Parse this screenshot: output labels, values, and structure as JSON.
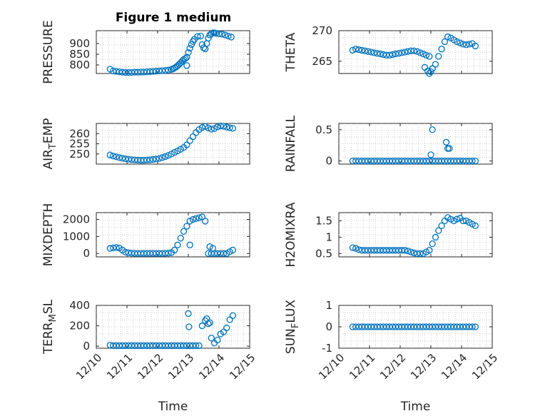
{
  "figure": {
    "title": "Figure 1 medium",
    "marker_color": "#0072bd",
    "x_tick_labels": [
      "12/10",
      "12/11",
      "12/12",
      "12/13",
      "12/14",
      "12/15"
    ],
    "x_label": "Time"
  },
  "chart_data": [
    {
      "type": "scatter",
      "ylabel": "PRESSURE",
      "ylim": [
        760,
        960
      ],
      "yticks": [
        800,
        850,
        900
      ],
      "ytick_labels": [
        "800",
        "850",
        "900"
      ],
      "xlim": [
        10,
        15
      ],
      "x_label": "",
      "marker": "circle",
      "x": [
        10.45,
        10.55,
        10.65,
        10.75,
        10.85,
        10.95,
        11.05,
        11.15,
        11.25,
        11.35,
        11.45,
        11.55,
        11.65,
        11.75,
        11.85,
        11.95,
        12.05,
        12.15,
        12.25,
        12.35,
        12.45,
        12.5,
        12.55,
        12.6,
        12.65,
        12.7,
        12.75,
        12.8,
        12.85,
        12.9,
        12.95,
        13.0,
        13.05,
        13.1,
        13.15,
        13.2,
        13.3,
        13.4,
        13.45,
        13.5,
        13.55,
        13.6,
        13.65,
        13.7,
        13.75,
        13.8,
        13.85,
        13.9,
        14.0,
        14.1,
        14.2,
        14.3,
        14.4,
        12.95
      ],
      "y": [
        780,
        772,
        770,
        768,
        766,
        765,
        765,
        765,
        766,
        766,
        767,
        767,
        768,
        769,
        770,
        771,
        772,
        773,
        774,
        776,
        779,
        782,
        786,
        790,
        796,
        803,
        810,
        818,
        825,
        830,
        836,
        858,
        878,
        895,
        910,
        920,
        933,
        935,
        895,
        880,
        875,
        900,
        925,
        940,
        945,
        950,
        950,
        948,
        946,
        944,
        940,
        935,
        930,
        797
      ]
    },
    {
      "type": "scatter",
      "ylabel": "THETA",
      "ylim": [
        263,
        270
      ],
      "yticks": [
        265,
        270
      ],
      "ytick_labels": [
        "265",
        "270"
      ],
      "xlim": [
        10,
        15
      ],
      "x_label": "",
      "marker": "circle",
      "x": [
        10.45,
        10.55,
        10.65,
        10.75,
        10.85,
        10.95,
        11.05,
        11.15,
        11.25,
        11.35,
        11.45,
        11.55,
        11.65,
        11.75,
        11.85,
        11.95,
        12.05,
        12.15,
        12.25,
        12.35,
        12.45,
        12.55,
        12.65,
        12.75,
        12.85,
        12.95,
        13.05,
        13.15,
        13.25,
        13.35,
        13.45,
        13.55,
        13.65,
        13.75,
        13.85,
        13.95,
        14.05,
        14.15,
        14.25,
        14.35,
        14.45,
        12.8,
        12.9,
        12.95,
        13.0,
        13.05
      ],
      "y": [
        266.8,
        267.0,
        266.9,
        266.8,
        266.7,
        266.6,
        266.5,
        266.4,
        266.3,
        266.2,
        266.1,
        266.0,
        266.0,
        266.1,
        266.2,
        266.3,
        266.4,
        266.5,
        266.6,
        266.7,
        266.7,
        266.6,
        266.4,
        266.2,
        266.0,
        265.8,
        263.8,
        264.5,
        265.8,
        267.0,
        268.2,
        269.0,
        268.8,
        268.5,
        268.2,
        268.0,
        267.8,
        267.7,
        267.8,
        267.9,
        267.5,
        264.0,
        263.4,
        263.0,
        263.3,
        263.8
      ]
    },
    {
      "type": "scatter",
      "ylabel": "AIR_TEMP",
      "ylim": [
        245,
        265
      ],
      "yticks": [
        250,
        255,
        260
      ],
      "ytick_labels": [
        "250",
        "255",
        "260"
      ],
      "xlim": [
        10,
        15
      ],
      "x_label": "",
      "marker": "circle",
      "x": [
        10.45,
        10.55,
        10.65,
        10.75,
        10.85,
        10.95,
        11.05,
        11.15,
        11.25,
        11.35,
        11.45,
        11.55,
        11.65,
        11.75,
        11.85,
        11.95,
        12.05,
        12.15,
        12.25,
        12.35,
        12.45,
        12.55,
        12.65,
        12.75,
        12.85,
        12.95,
        13.05,
        13.15,
        13.25,
        13.35,
        13.45,
        13.55,
        13.65,
        13.75,
        13.85,
        13.95,
        14.05,
        14.15,
        14.25,
        14.35,
        14.45
      ],
      "y": [
        249.5,
        249.0,
        248.6,
        248.2,
        247.9,
        247.6,
        247.4,
        247.2,
        247.1,
        247.0,
        246.9,
        246.9,
        247.0,
        247.1,
        247.3,
        247.5,
        247.8,
        248.2,
        248.7,
        249.3,
        250.0,
        250.8,
        251.5,
        252.3,
        253.2,
        254.5,
        256.5,
        258.5,
        260.5,
        262.0,
        263.0,
        263.5,
        262.8,
        262.2,
        262.5,
        263.3,
        263.8,
        263.6,
        263.2,
        262.9,
        262.6
      ]
    },
    {
      "type": "scatter",
      "ylabel": "RAINFALL",
      "ylim": [
        -0.05,
        0.6
      ],
      "yticks": [
        0,
        0.5
      ],
      "ytick_labels": [
        "0",
        "0.5"
      ],
      "xlim": [
        10,
        15
      ],
      "x_label": "",
      "marker": "circle",
      "x": [
        10.45,
        10.55,
        10.65,
        10.75,
        10.85,
        10.95,
        11.05,
        11.15,
        11.25,
        11.35,
        11.45,
        11.55,
        11.65,
        11.75,
        11.85,
        11.95,
        12.05,
        12.15,
        12.25,
        12.35,
        12.45,
        12.55,
        12.65,
        12.75,
        12.85,
        12.95,
        13.05,
        13.15,
        13.25,
        13.35,
        13.45,
        13.55,
        13.65,
        13.75,
        13.85,
        13.95,
        14.05,
        14.15,
        14.25,
        14.35,
        14.45,
        13.0,
        13.05,
        13.5,
        13.55,
        13.6
      ],
      "y": [
        0,
        0,
        0,
        0,
        0,
        0,
        0,
        0,
        0,
        0,
        0,
        0,
        0,
        0,
        0,
        0,
        0,
        0,
        0,
        0,
        0,
        0,
        0,
        0,
        0,
        0,
        0,
        0,
        0,
        0,
        0,
        0,
        0,
        0,
        0,
        0,
        0,
        0,
        0,
        0,
        0,
        0.1,
        0.5,
        0.3,
        0.2,
        0.2
      ]
    },
    {
      "type": "scatter",
      "ylabel": "MIXDEPTH",
      "ylim": [
        -200,
        2400
      ],
      "yticks": [
        0,
        1000,
        2000
      ],
      "ytick_labels": [
        "0",
        "1000",
        "2000"
      ],
      "xlim": [
        10,
        15
      ],
      "x_label": "",
      "marker": "circle",
      "x": [
        10.45,
        10.55,
        10.65,
        10.75,
        10.85,
        10.95,
        11.05,
        11.15,
        11.25,
        11.35,
        11.45,
        11.55,
        11.65,
        11.75,
        11.85,
        11.95,
        12.05,
        12.15,
        12.25,
        12.35,
        12.45,
        12.55,
        12.65,
        12.75,
        12.85,
        12.95,
        13.05,
        13.15,
        13.25,
        13.35,
        13.45,
        13.55,
        13.65,
        13.75,
        13.85,
        13.95,
        14.05,
        14.15,
        14.25,
        14.35,
        14.45,
        13.05,
        13.7,
        13.8
      ],
      "y": [
        300,
        330,
        350,
        320,
        200,
        80,
        40,
        20,
        10,
        5,
        5,
        5,
        5,
        5,
        5,
        5,
        5,
        5,
        10,
        20,
        50,
        200,
        500,
        900,
        1300,
        1600,
        1900,
        2000,
        2050,
        2100,
        2150,
        1900,
        0,
        0,
        0,
        0,
        0,
        0,
        0,
        100,
        200,
        500,
        400,
        300
      ]
    },
    {
      "type": "scatter",
      "ylabel": "H2OMIXRA",
      "ylim": [
        0.4,
        1.75
      ],
      "yticks": [
        0.5,
        1,
        1.5
      ],
      "ytick_labels": [
        "0.5",
        "1",
        "1.5"
      ],
      "xlim": [
        10,
        15
      ],
      "x_label": "",
      "marker": "circle",
      "x": [
        10.45,
        10.55,
        10.65,
        10.75,
        10.85,
        10.95,
        11.05,
        11.15,
        11.25,
        11.35,
        11.45,
        11.55,
        11.65,
        11.75,
        11.85,
        11.95,
        12.05,
        12.15,
        12.25,
        12.35,
        12.45,
        12.55,
        12.65,
        12.75,
        12.85,
        12.95,
        13.05,
        13.15,
        13.25,
        13.35,
        13.45,
        13.55,
        13.65,
        13.75,
        13.85,
        13.95,
        14.05,
        14.15,
        14.25,
        14.35,
        14.45
      ],
      "y": [
        0.68,
        0.66,
        0.62,
        0.6,
        0.6,
        0.6,
        0.6,
        0.6,
        0.6,
        0.6,
        0.6,
        0.6,
        0.6,
        0.6,
        0.6,
        0.6,
        0.6,
        0.6,
        0.58,
        0.55,
        0.52,
        0.5,
        0.5,
        0.5,
        0.55,
        0.6,
        0.8,
        1.0,
        1.2,
        1.35,
        1.5,
        1.6,
        1.55,
        1.5,
        1.55,
        1.58,
        1.5,
        1.5,
        1.45,
        1.4,
        1.35
      ]
    },
    {
      "type": "scatter",
      "ylabel": "TERR_MSL",
      "ylim": [
        -20,
        400
      ],
      "yticks": [
        0,
        200,
        400
      ],
      "ytick_labels": [
        "0",
        "200",
        "400"
      ],
      "xlim": [
        10,
        15
      ],
      "x_label": "Time",
      "marker": "circle",
      "x": [
        10.45,
        10.55,
        10.65,
        10.75,
        10.85,
        10.95,
        11.05,
        11.15,
        11.25,
        11.35,
        11.45,
        11.55,
        11.65,
        11.75,
        11.85,
        11.95,
        12.05,
        12.15,
        12.25,
        12.35,
        12.45,
        12.55,
        12.65,
        12.75,
        12.85,
        12.95,
        13.05,
        13.15,
        13.25,
        13.35,
        13.45,
        13.55,
        13.65,
        13.75,
        13.85,
        13.95,
        14.05,
        14.15,
        14.25,
        14.35,
        14.45,
        13.0,
        13.02,
        13.6,
        13.7
      ],
      "y": [
        10,
        5,
        5,
        5,
        5,
        5,
        5,
        5,
        5,
        5,
        5,
        5,
        5,
        5,
        5,
        5,
        5,
        5,
        5,
        5,
        5,
        5,
        5,
        5,
        5,
        5,
        5,
        5,
        5,
        5,
        200,
        250,
        220,
        80,
        30,
        60,
        120,
        140,
        180,
        260,
        300,
        320,
        190,
        270,
        230
      ]
    },
    {
      "type": "scatter",
      "ylabel": "SUN_FLUX",
      "ylim": [
        -1,
        1
      ],
      "yticks": [
        -1,
        0,
        1
      ],
      "ytick_labels": [
        "-1",
        "0",
        "1"
      ],
      "xlim": [
        10,
        15
      ],
      "x_label": "Time",
      "marker": "circle",
      "x": [
        10.45,
        10.55,
        10.65,
        10.75,
        10.85,
        10.95,
        11.05,
        11.15,
        11.25,
        11.35,
        11.45,
        11.55,
        11.65,
        11.75,
        11.85,
        11.95,
        12.05,
        12.15,
        12.25,
        12.35,
        12.45,
        12.55,
        12.65,
        12.75,
        12.85,
        12.95,
        13.05,
        13.15,
        13.25,
        13.35,
        13.45,
        13.55,
        13.65,
        13.75,
        13.85,
        13.95,
        14.05,
        14.15,
        14.25,
        14.35,
        14.45
      ],
      "y": [
        0,
        0,
        0,
        0,
        0,
        0,
        0,
        0,
        0,
        0,
        0,
        0,
        0,
        0,
        0,
        0,
        0,
        0,
        0,
        0,
        0,
        0,
        0,
        0,
        0,
        0,
        0,
        0,
        0,
        0,
        0,
        0,
        0,
        0,
        0,
        0,
        0,
        0,
        0,
        0,
        0
      ]
    }
  ]
}
